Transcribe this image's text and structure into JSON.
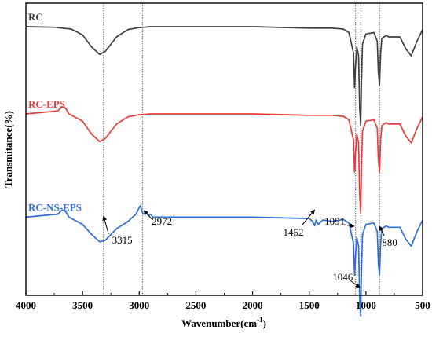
{
  "chart_data": {
    "type": "line",
    "xlabel": "Wavenumber(cm",
    "xlabel_sup": "-1",
    "xlabel_end": ")",
    "ylabel": "Transmitance(%)",
    "xlim": [
      4000,
      500
    ],
    "x_reversed": true,
    "ticks": [
      "4000",
      "3500",
      "3000",
      "2500",
      "2000",
      "1500",
      "1000",
      "500"
    ],
    "tick_values": [
      4000,
      3500,
      3000,
      2500,
      2000,
      1500,
      1000,
      500
    ],
    "y_ticks_shown": false,
    "vlines": [
      3315,
      2972,
      1091,
      1046,
      880
    ],
    "series": [
      {
        "name": "RC",
        "color": "#3f3f3f",
        "offset": 3,
        "points": [
          [
            4000,
            0
          ],
          [
            3750,
            -0.02
          ],
          [
            3600,
            -0.08
          ],
          [
            3500,
            -0.28
          ],
          [
            3420,
            -0.7
          ],
          [
            3350,
            -0.95
          ],
          [
            3300,
            -0.85
          ],
          [
            3200,
            -0.35
          ],
          [
            3100,
            -0.1
          ],
          [
            3000,
            -0.03
          ],
          [
            2900,
            0
          ],
          [
            2000,
            0
          ],
          [
            1500,
            -0.05
          ],
          [
            1300,
            -0.05
          ],
          [
            1200,
            -0.08
          ],
          [
            1150,
            -0.2
          ],
          [
            1110,
            -0.9
          ],
          [
            1100,
            -2.1
          ],
          [
            1091,
            -1.3
          ],
          [
            1080,
            -0.7
          ],
          [
            1065,
            -1.0
          ],
          [
            1055,
            -2.8
          ],
          [
            1046,
            -3.4
          ],
          [
            1040,
            -2.0
          ],
          [
            1030,
            -0.6
          ],
          [
            1000,
            -0.25
          ],
          [
            930,
            -0.2
          ],
          [
            900,
            -0.5
          ],
          [
            890,
            -1.6
          ],
          [
            880,
            -2.0
          ],
          [
            870,
            -0.9
          ],
          [
            860,
            -0.4
          ],
          [
            820,
            -0.3
          ],
          [
            800,
            -0.35
          ],
          [
            700,
            -0.35
          ],
          [
            650,
            -0.75
          ],
          [
            600,
            -1.0
          ],
          [
            550,
            -0.5
          ],
          [
            500,
            -0.1
          ]
        ]
      },
      {
        "name": "RC-EPS",
        "color": "#ea3b3b",
        "offset": 0,
        "points": [
          [
            4000,
            0
          ],
          [
            3720,
            0.1
          ],
          [
            3680,
            0.25
          ],
          [
            3650,
            0.2
          ],
          [
            3620,
            0
          ],
          [
            3500,
            -0.25
          ],
          [
            3420,
            -0.7
          ],
          [
            3350,
            -0.95
          ],
          [
            3300,
            -0.85
          ],
          [
            3200,
            -0.35
          ],
          [
            3100,
            -0.1
          ],
          [
            3000,
            -0.03
          ],
          [
            2900,
            0
          ],
          [
            2000,
            0
          ],
          [
            1500,
            -0.05
          ],
          [
            1300,
            -0.05
          ],
          [
            1200,
            -0.08
          ],
          [
            1150,
            -0.2
          ],
          [
            1110,
            -0.9
          ],
          [
            1100,
            -2.0
          ],
          [
            1091,
            -1.3
          ],
          [
            1080,
            -0.7
          ],
          [
            1065,
            -1.0
          ],
          [
            1055,
            -2.8
          ],
          [
            1046,
            -3.4
          ],
          [
            1040,
            -2.0
          ],
          [
            1030,
            -0.6
          ],
          [
            1000,
            -0.25
          ],
          [
            930,
            -0.2
          ],
          [
            900,
            -0.5
          ],
          [
            890,
            -1.6
          ],
          [
            880,
            -2.0
          ],
          [
            870,
            -0.9
          ],
          [
            860,
            -0.4
          ],
          [
            820,
            -0.3
          ],
          [
            800,
            -0.35
          ],
          [
            700,
            -0.35
          ],
          [
            650,
            -0.75
          ],
          [
            600,
            -1.0
          ],
          [
            550,
            -0.5
          ],
          [
            500,
            -0.1
          ]
        ]
      },
      {
        "name": "RC-NS-EPS",
        "color": "#2f6fd8",
        "offset": -3.55,
        "points": [
          [
            4000,
            0
          ],
          [
            3720,
            0.1
          ],
          [
            3680,
            0.25
          ],
          [
            3650,
            0.2
          ],
          [
            3620,
            0
          ],
          [
            3500,
            -0.25
          ],
          [
            3420,
            -0.6
          ],
          [
            3350,
            -0.85
          ],
          [
            3300,
            -0.8
          ],
          [
            3200,
            -0.4
          ],
          [
            3100,
            -0.15
          ],
          [
            3030,
            0.1
          ],
          [
            2990,
            0.4
          ],
          [
            2972,
            0.15
          ],
          [
            2960,
            0.1
          ],
          [
            2940,
            0.2
          ],
          [
            2920,
            0.05
          ],
          [
            2900,
            0.1
          ],
          [
            2880,
            0
          ],
          [
            2860,
            0
          ],
          [
            2000,
            0
          ],
          [
            1500,
            -0.05
          ],
          [
            1470,
            -0.15
          ],
          [
            1452,
            -0.3
          ],
          [
            1440,
            -0.1
          ],
          [
            1420,
            -0.25
          ],
          [
            1380,
            -0.1
          ],
          [
            1300,
            -0.15
          ],
          [
            1200,
            -0.08
          ],
          [
            1150,
            -0.2
          ],
          [
            1110,
            -0.9
          ],
          [
            1100,
            -2.0
          ],
          [
            1091,
            -1.3
          ],
          [
            1080,
            -0.7
          ],
          [
            1065,
            -1.0
          ],
          [
            1055,
            -2.8
          ],
          [
            1046,
            -3.4
          ],
          [
            1040,
            -2.0
          ],
          [
            1030,
            -0.6
          ],
          [
            1000,
            -0.25
          ],
          [
            930,
            -0.2
          ],
          [
            900,
            -0.5
          ],
          [
            890,
            -1.6
          ],
          [
            880,
            -2.0
          ],
          [
            870,
            -0.9
          ],
          [
            860,
            -0.4
          ],
          [
            820,
            -0.3
          ],
          [
            800,
            -0.35
          ],
          [
            700,
            -0.35
          ],
          [
            650,
            -0.75
          ],
          [
            600,
            -1.0
          ],
          [
            550,
            -0.5
          ],
          [
            500,
            -0.1
          ]
        ]
      }
    ],
    "annotations": [
      {
        "label": "3315",
        "x": 3315,
        "series": 2
      },
      {
        "label": "2972",
        "x": 2972,
        "series": 2
      },
      {
        "label": "1452",
        "x": 1452,
        "series": 2
      },
      {
        "label": "1091",
        "x": 1091,
        "series": 2
      },
      {
        "label": "880",
        "x": 880,
        "series": 2
      },
      {
        "label": "1046",
        "x": 1046,
        "series": 2
      }
    ]
  }
}
